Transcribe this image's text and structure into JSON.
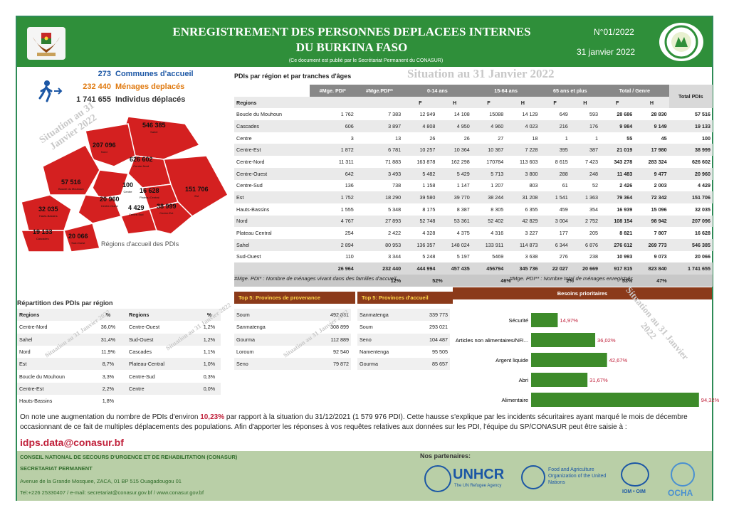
{
  "header": {
    "title_line1": "ENREGISTREMENT DES PERSONNES DEPLACEES INTERNES",
    "title_line2": "DU BURKINA FASO",
    "subtitle": "(Ce document est publié par le Secrétariat Permanent du CONASUR)",
    "number": "N°01/2022",
    "date": "31 janvier 2022"
  },
  "colors": {
    "header_green": "#2f8f3a",
    "bar_green": "#3d8b2a",
    "box_brown": "#8b3a1a",
    "highlight_red": "#c0203a",
    "map_red": "#d42020",
    "accent_blue": "#1c57a5"
  },
  "icons": {
    "walking": "person-walking-icon",
    "family": "family-icon"
  },
  "stats": [
    {
      "value": "273",
      "label": "Communes d'accueil",
      "color": "#1c57a5"
    },
    {
      "value": "232 440",
      "label": "Ménages deplacés",
      "color": "#e07a10"
    },
    {
      "value": "1 741 655",
      "label": "Individus déplacés",
      "color": "#333333"
    }
  ],
  "watermark": "Situation au 31 Janvier 2022",
  "map": {
    "caption": "Régions d'accueil des PDIs",
    "labels": [
      {
        "value": "546 385",
        "name": "Sahel"
      },
      {
        "value": "207 096",
        "name": "Nord"
      },
      {
        "value": "626 602",
        "name": "Centre-Nord"
      },
      {
        "value": "57 516",
        "name": "Boucle du Mouhoun"
      },
      {
        "value": "100",
        "name": "Centre"
      },
      {
        "value": "16 628",
        "name": "Plateau Central"
      },
      {
        "value": "151 706",
        "name": "Est"
      },
      {
        "value": "32 035",
        "name": "Hauts-Bassins"
      },
      {
        "value": "20 960",
        "name": "Centre-Ouest"
      },
      {
        "value": "4 429",
        "name": "Centre-Sud"
      },
      {
        "value": "38 999",
        "name": "Centre-Est"
      },
      {
        "value": "19 133",
        "name": "Cascades"
      },
      {
        "value": "20 066",
        "name": "Sud-Ouest"
      }
    ]
  },
  "main_table": {
    "title": "PDIs par région et par tranches d'âges",
    "h1": [
      "#Mge. PDI*",
      "#Mge.PDI**",
      "0-14 ans",
      "15-64 ans",
      "65 ans et plus",
      "Total / Genre"
    ],
    "h2": [
      "Regions",
      "F",
      "H",
      "F",
      "H",
      "F",
      "H",
      "F",
      "H"
    ],
    "total_header": "Total PDIs",
    "rows": [
      [
        "Boucle du Mouhoun",
        "1 762",
        "7 383",
        "12 949",
        "14 108",
        "15088",
        "14 129",
        "649",
        "593",
        "28 686",
        "28 830",
        "57 516"
      ],
      [
        "Cascades",
        "606",
        "3 897",
        "4 808",
        "4 950",
        "4 960",
        "4 023",
        "216",
        "176",
        "9 984",
        "9 149",
        "19 133"
      ],
      [
        "Centre",
        "3",
        "13",
        "26",
        "26",
        "27",
        "18",
        "1",
        "1",
        "55",
        "45",
        "100"
      ],
      [
        "Centre-Est",
        "1 872",
        "6 781",
        "10 257",
        "10 364",
        "10 367",
        "7 228",
        "395",
        "387",
        "21 019",
        "17 980",
        "38 999"
      ],
      [
        "Centre-Nord",
        "11 311",
        "71 883",
        "163 878",
        "162 298",
        "170784",
        "113 603",
        "8 615",
        "7 423",
        "343 278",
        "283 324",
        "626 602"
      ],
      [
        "Centre-Ouest",
        "642",
        "3 493",
        "5 482",
        "5 429",
        "5 713",
        "3 800",
        "288",
        "248",
        "11 483",
        "9 477",
        "20 960"
      ],
      [
        "Centre-Sud",
        "136",
        "738",
        "1 158",
        "1 147",
        "1 207",
        "803",
        "61",
        "52",
        "2 426",
        "2 003",
        "4 429"
      ],
      [
        "Est",
        "1 752",
        "18 290",
        "39 580",
        "39 770",
        "38 244",
        "31 208",
        "1 541",
        "1 363",
        "79 364",
        "72 342",
        "151 706"
      ],
      [
        "Hauts-Bassins",
        "1 555",
        "5 348",
        "8 175",
        "8 387",
        "8 305",
        "6 355",
        "459",
        "354",
        "16 939",
        "15 096",
        "32 035"
      ],
      [
        "Nord",
        "4 767",
        "27 893",
        "52 748",
        "53 361",
        "52 402",
        "42 829",
        "3 004",
        "2 752",
        "108 154",
        "98 942",
        "207 096"
      ],
      [
        "Plateau Central",
        "254",
        "2 422",
        "4 328",
        "4 375",
        "4 316",
        "3 227",
        "177",
        "205",
        "8 821",
        "7 807",
        "16 628"
      ],
      [
        "Sahel",
        "2 894",
        "80 953",
        "136 357",
        "148 024",
        "133 911",
        "114 873",
        "6 344",
        "6 876",
        "276 612",
        "269 773",
        "546 385"
      ],
      [
        "Sud-Ouest",
        "110",
        "3 344",
        "5 248",
        "5 197",
        "5469",
        "3 638",
        "276",
        "238",
        "10 993",
        "9 073",
        "20 066"
      ]
    ],
    "totals": [
      "26 964",
      "232 440",
      "444 994",
      "457 435",
      "456794",
      "345 736",
      "22 027",
      "20 669",
      "917 815",
      "823 840",
      "1 741 655"
    ],
    "pcts": [
      "12%",
      "52%",
      "46%",
      "2%",
      "53%",
      "47%"
    ]
  },
  "notes": {
    "n1": "#Mge. PDI* : Nombre de ménages vivant dans des familles d'accueil",
    "n2": "#Mge. PDI** : Nombre total de ménages enregistrés"
  },
  "repartition": {
    "title": "Répartition des PDIs par région",
    "headers": [
      "Regions",
      "%",
      "Regions",
      "%"
    ],
    "rows": [
      [
        "Centre-Nord",
        "36,0%",
        "Centre-Ouest",
        "1,2%"
      ],
      [
        "Sahel",
        "31,4%",
        "Sud-Ouest",
        "1,2%"
      ],
      [
        "Nord",
        "11,9%",
        "Cascades",
        "1,1%"
      ],
      [
        "Est",
        "8,7%",
        "Plateau-Central",
        "1,0%"
      ],
      [
        "Boucle du Mouhoun",
        "3,3%",
        "Centre-Sud",
        "0,3%"
      ],
      [
        "Centre-Est",
        "2,2%",
        "Centre",
        "0,0%"
      ],
      [
        "Hauts-Bassins",
        "1,8%",
        "",
        ""
      ]
    ]
  },
  "provenance": {
    "title": "Top 5: Provinces de provenance",
    "rows": [
      [
        "Soum",
        "492 831"
      ],
      [
        "Sanmatenga",
        "308 899"
      ],
      [
        "Gourma",
        "112 889"
      ],
      [
        "Loroum",
        "92 540"
      ],
      [
        "Seno",
        "79 872"
      ]
    ]
  },
  "accueil": {
    "title": "Top 5: Provinces d'accueil",
    "rows": [
      [
        "Sanmatenga",
        "339 773"
      ],
      [
        "Soum",
        "293 021"
      ],
      [
        "Seno",
        "104 487"
      ],
      [
        "Namentenga",
        "95 505"
      ],
      [
        "Gourma",
        "85 657"
      ]
    ]
  },
  "chart_data": {
    "type": "bar",
    "title": "Besoins prioritaires",
    "orientation": "horizontal",
    "categories": [
      "Sécurité",
      "Articles non alimentaires/NFI...",
      "Argent liquide",
      "Abri",
      "Alimentaire"
    ],
    "values": [
      14.97,
      36.02,
      42.67,
      31.67,
      94.32
    ],
    "labels": [
      "14,97%",
      "36,02%",
      "42,67%",
      "31,67%",
      "94,32%"
    ],
    "xlim": [
      0,
      100
    ]
  },
  "footnote": {
    "pre": "On note une augmentation du nombre de PDIs d'environ ",
    "highlight": "10,23%",
    "post": " par rapport à la situation du 31/12/2021 (1 579 976 PDI). Cette hausse s'explique par les incidents sécuritaires ayant marqué le mois de décembre occasionnant de ce fait de multiples déplacements des populations. Afin d'apporter les réponses à vos requêtes relatives aux données sur les PDI, l'équipe du SP/CONASUR peut être saisie à :",
    "email": "idps.data@conasur.bf"
  },
  "footer": {
    "org": "CONSEIL NATIONAL DE SECOURS D'URGENCE ET DE REHABILITATION (CONASUR)",
    "secretariat": "SECRETARIAT PERMANENT",
    "address": "Avenue de la Grande Mosquee, ZACA, 01 BP 515 Ouagadougou 01",
    "contact": "Tel:+226 25330407 / e-mail: secretariat@conasur.gov.bf / www.conasur.gov.bf",
    "partners_title": "Nos partenaires:",
    "unhcr": "UNHCR",
    "unhcr_sub": "The UN Refugee Agency",
    "fao": "Food and Agriculture Organization of the United Nations",
    "iom": "IOM • OIM",
    "ocha": "OCHA"
  }
}
